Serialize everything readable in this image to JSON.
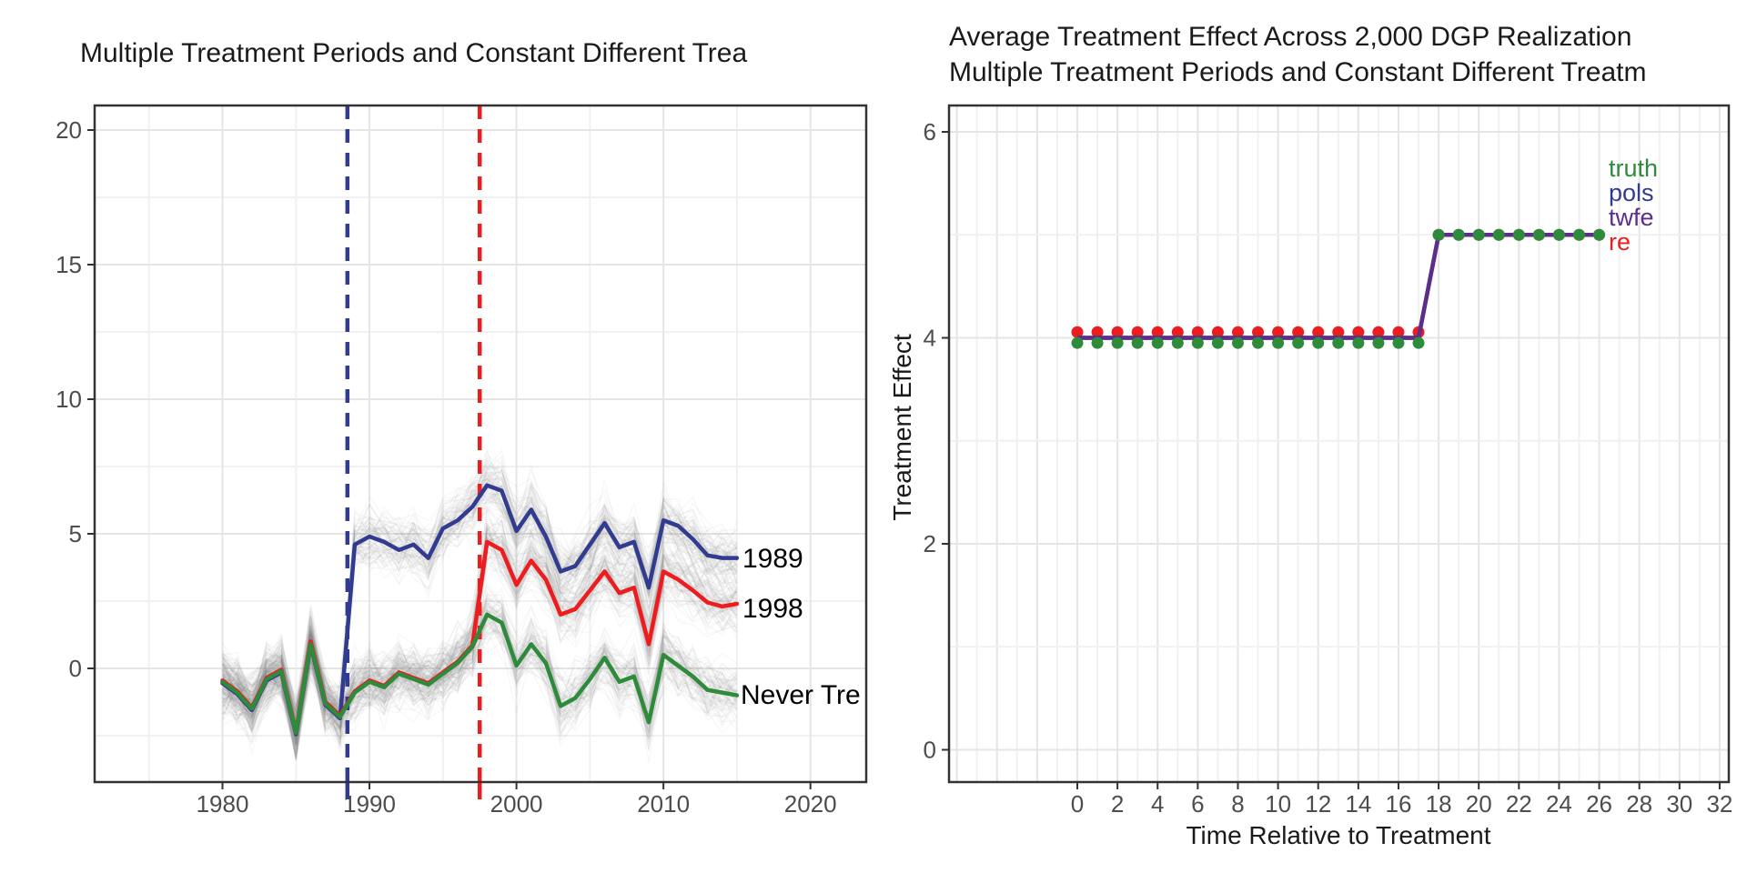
{
  "page": {
    "background": "#ffffff"
  },
  "colors": {
    "navy": "#313b8f",
    "red": "#ed1c1f",
    "green": "#2e8b3c",
    "purple": "#5c2d89",
    "grid_major": "#e5e5e5",
    "grid_minor": "#f1f1f1",
    "panel_border": "#333333",
    "tick_label": "#4d4d4d",
    "spaghetti": "#8a8a8a"
  },
  "chart_data": [
    {
      "type": "line",
      "title": "Multiple Treatment Periods and Constant Different Trea",
      "x": [
        1980,
        1981,
        1982,
        1983,
        1984,
        1985,
        1986,
        1987,
        1988,
        1989,
        1990,
        1991,
        1992,
        1993,
        1994,
        1995,
        1996,
        1997,
        1998,
        1999,
        2000,
        2001,
        2002,
        2003,
        2004,
        2005,
        2006,
        2007,
        2008,
        2009,
        2010,
        2011,
        2012,
        2013,
        2014,
        2015
      ],
      "series": [
        {
          "name": "1989",
          "color": "#313b8f",
          "values": [
            -0.55,
            -0.95,
            -1.55,
            -0.45,
            -0.15,
            -2.45,
            0.85,
            -1.35,
            -1.85,
            4.6,
            4.9,
            4.7,
            4.4,
            4.6,
            4.1,
            5.2,
            5.5,
            6.0,
            6.8,
            6.6,
            5.1,
            5.9,
            4.9,
            3.6,
            3.8,
            4.6,
            5.4,
            4.5,
            4.7,
            3.0,
            5.5,
            5.3,
            4.8,
            4.2,
            4.1,
            4.1
          ]
        },
        {
          "name": "1998",
          "color": "#ed1c1f",
          "values": [
            -0.45,
            -0.85,
            -1.45,
            -0.35,
            -0.05,
            -2.35,
            1.0,
            -1.25,
            -1.75,
            -0.85,
            -0.45,
            -0.65,
            -0.15,
            -0.35,
            -0.55,
            -0.15,
            0.25,
            0.85,
            4.7,
            4.4,
            3.1,
            4.0,
            3.3,
            2.0,
            2.2,
            2.9,
            3.6,
            2.8,
            3.0,
            0.9,
            3.6,
            3.3,
            2.9,
            2.45,
            2.3,
            2.4
          ]
        },
        {
          "name": "Never Tre",
          "color": "#2e8b3c",
          "values": [
            -0.5,
            -0.9,
            -1.5,
            -0.4,
            -0.1,
            -2.4,
            0.9,
            -1.3,
            -1.8,
            -0.9,
            -0.5,
            -0.7,
            -0.2,
            -0.4,
            -0.6,
            -0.2,
            0.2,
            0.8,
            2.0,
            1.7,
            0.1,
            0.9,
            0.2,
            -1.4,
            -1.1,
            -0.4,
            0.4,
            -0.5,
            -0.3,
            -2.0,
            0.5,
            0.1,
            -0.3,
            -0.8,
            -0.9,
            -1.0
          ]
        }
      ],
      "vlines": [
        {
          "x": 1988.5,
          "color": "#313b8f",
          "style": "dashed"
        },
        {
          "x": 1997.5,
          "color": "#ed1c1f",
          "style": "dashed"
        }
      ],
      "background_lines": {
        "per_series": 80,
        "color": "#8a8a8a",
        "opacity": 0.065
      },
      "x_ticks": [
        1980,
        1990,
        2000,
        2010,
        2020
      ],
      "y_ticks": [
        0,
        5,
        10,
        15,
        20
      ],
      "x_minor": [
        1975,
        1985,
        1995,
        2005,
        2015
      ],
      "y_minor": [
        -2.5,
        2.5,
        7.5,
        12.5,
        17.5
      ],
      "xlim": [
        1971.3,
        2023.8
      ],
      "ylim": [
        -4.2,
        20.9
      ],
      "grid": true,
      "legend_position": "none"
    },
    {
      "type": "line",
      "title_line1": "Average Treatment Effect Across 2,000 DGP Realization",
      "title_line2": "Multiple Treatment Periods and Constant Different Treatm",
      "xlabel": "Time Relative to Treatment",
      "ylabel": "Treatment Effect",
      "x": [
        0,
        1,
        2,
        3,
        4,
        5,
        6,
        7,
        8,
        9,
        10,
        11,
        12,
        13,
        14,
        15,
        16,
        17,
        18,
        19,
        20,
        21,
        22,
        23,
        24,
        25,
        26
      ],
      "series": [
        {
          "name": "truth",
          "color": "#2e8b3c",
          "style": "points",
          "values": [
            4,
            4,
            4,
            4,
            4,
            4,
            4,
            4,
            4,
            4,
            4,
            4,
            4,
            4,
            4,
            4,
            4,
            4,
            5,
            5,
            5,
            5,
            5,
            5,
            5,
            5,
            5
          ]
        },
        {
          "name": "pols",
          "color": "#313b8f",
          "style": "line",
          "values": [
            4,
            4,
            4,
            4,
            4,
            4,
            4,
            4,
            4,
            4,
            4,
            4,
            4,
            4,
            4,
            4,
            4,
            4,
            5,
            5,
            5,
            5,
            5,
            5,
            5,
            5,
            5
          ]
        },
        {
          "name": "twfe",
          "color": "#5c2d89",
          "style": "line",
          "values": [
            4,
            4,
            4,
            4,
            4,
            4,
            4,
            4,
            4,
            4,
            4,
            4,
            4,
            4,
            4,
            4,
            4,
            4,
            5,
            5,
            5,
            5,
            5,
            5,
            5,
            5,
            5
          ]
        },
        {
          "name": "re",
          "color": "#ed1c1f",
          "style": "points",
          "values": [
            4,
            4,
            4,
            4,
            4,
            4,
            4,
            4,
            4,
            4,
            4,
            4,
            4,
            4,
            4,
            4,
            4,
            4,
            5,
            5,
            5,
            5,
            5,
            5,
            5,
            5,
            5
          ]
        }
      ],
      "x_ticks": [
        0,
        2,
        4,
        6,
        8,
        10,
        12,
        14,
        16,
        18,
        20,
        22,
        24,
        26,
        28,
        30,
        32
      ],
      "y_ticks": [
        0,
        2,
        4,
        6
      ],
      "y_minor": [
        1,
        3,
        5
      ],
      "xlim": [
        -6.4,
        32.5
      ],
      "ylim": [
        -0.31,
        6.26
      ],
      "grid": true,
      "legend_position": "right-inside-top",
      "legend": [
        "truth",
        "pols",
        "twfe",
        "re"
      ]
    }
  ]
}
